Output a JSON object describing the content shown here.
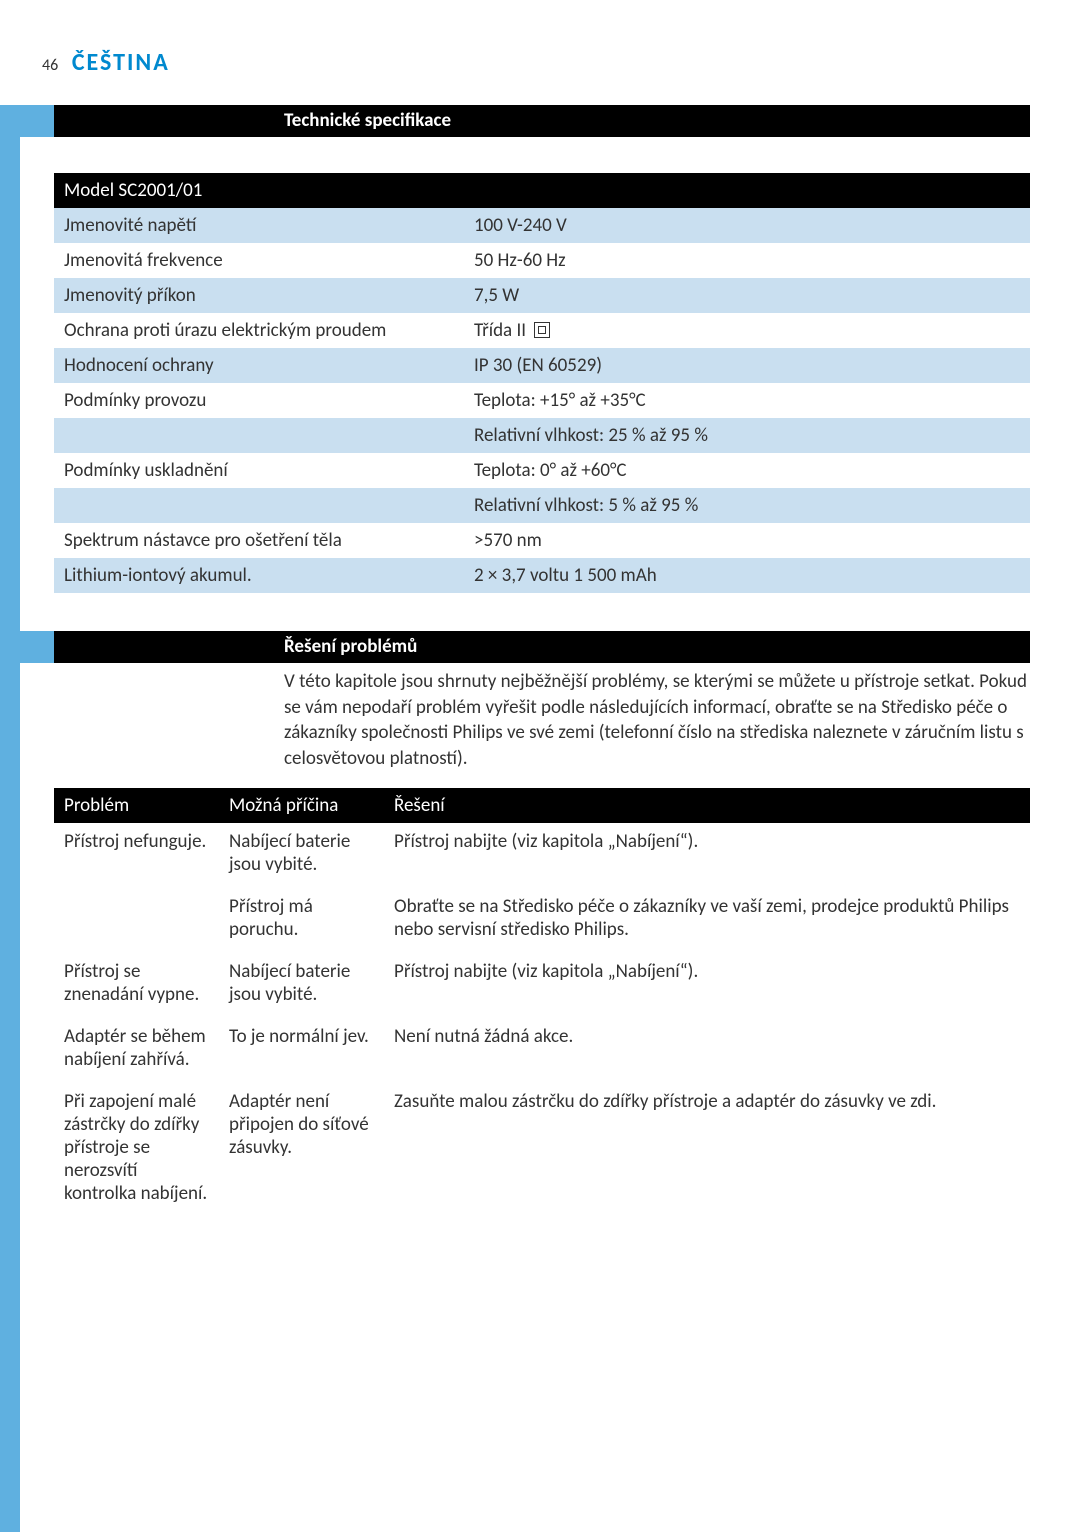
{
  "header": {
    "page_number": "46",
    "language": "ČEŠTINA"
  },
  "section1": {
    "title": "Technické specifikace",
    "table_header": "Model SC2001/01",
    "rows": [
      {
        "label": "Jmenovité napětí",
        "value": "100 V-240 V",
        "alt": true
      },
      {
        "label": "Jmenovitá frekvence",
        "value": "50 Hz-60 Hz",
        "alt": false
      },
      {
        "label": "Jmenovitý příkon",
        "value": "7,5 W",
        "alt": true
      },
      {
        "label": "Ochrana proti úrazu elektrickým proudem",
        "value": "Třída II",
        "alt": false,
        "class2": true
      },
      {
        "label": "Hodnocení ochrany",
        "value": "IP 30 (EN 60529)",
        "alt": true
      },
      {
        "label": "Podmínky provozu",
        "value": "Teplota: +15° až +35°C",
        "alt": false
      },
      {
        "label": "",
        "value": "Relativní vlhkost: 25 % až 95 %",
        "alt": true
      },
      {
        "label": "Podmínky uskladnění",
        "value": "Teplota: 0° až +60°C",
        "alt": false
      },
      {
        "label": "",
        "value": "Relativní vlhkost: 5 % až 95 %",
        "alt": true
      },
      {
        "label": "Spektrum nástavce pro ošetření těla",
        "value": ">570 nm",
        "alt": false
      },
      {
        "label": "Lithium-iontový akumul.",
        "value": "2 × 3,7 voltu 1 500 mAh",
        "alt": true
      }
    ]
  },
  "section2": {
    "title": "Řešení problémů",
    "intro": "V této kapitole jsou shrnuty nejběžnější problémy, se kterými se můžete u přístroje setkat. Pokud se vám nepodaří problém vyřešit podle následujících informací, obraťte se na Středisko péče o zákazníky společnosti Philips ve své zemi (telefonní číslo na střediska naleznete v záručním listu s celosvětovou platností).",
    "headers": {
      "c1": "Problém",
      "c2": "Možná příčina",
      "c3": "Řešení"
    },
    "rows": [
      {
        "c1": "Přístroj nefunguje.",
        "c2": "Nabíjecí baterie jsou vybité.",
        "c3": "Přístroj nabijte (viz kapitola „Nabíjení“)."
      },
      {
        "c1": "",
        "c2": "Přístroj má poruchu.",
        "c3": "Obraťte se na Středisko péče o zákazníky ve vaší zemi, prodejce produktů Philips nebo servisní středisko Philips."
      },
      {
        "c1": "Přístroj se znenadání vypne.",
        "c2": "Nabíjecí baterie jsou vybité.",
        "c3": "Přístroj nabijte (viz kapitola „Nabíjení“)."
      },
      {
        "c1": "Adaptér se během nabíjení zahřívá.",
        "c2": "To je normální jev.",
        "c3": "Není nutná žádná akce."
      },
      {
        "c1": "Při zapojení malé zástrčky do zdířky přístroje se nerozsvítí kontrolka nabíjení.",
        "c2": "Adaptér není připojen do síťové zásuvky.",
        "c3": "Zasuňte malou zástrčku do zdířky přístroje a adaptér do zásuvky ve zdi."
      }
    ]
  },
  "colors": {
    "accent_blue": "#5fb0e0",
    "heading_blue": "#0089cf",
    "row_alt": "#c9dff0"
  }
}
